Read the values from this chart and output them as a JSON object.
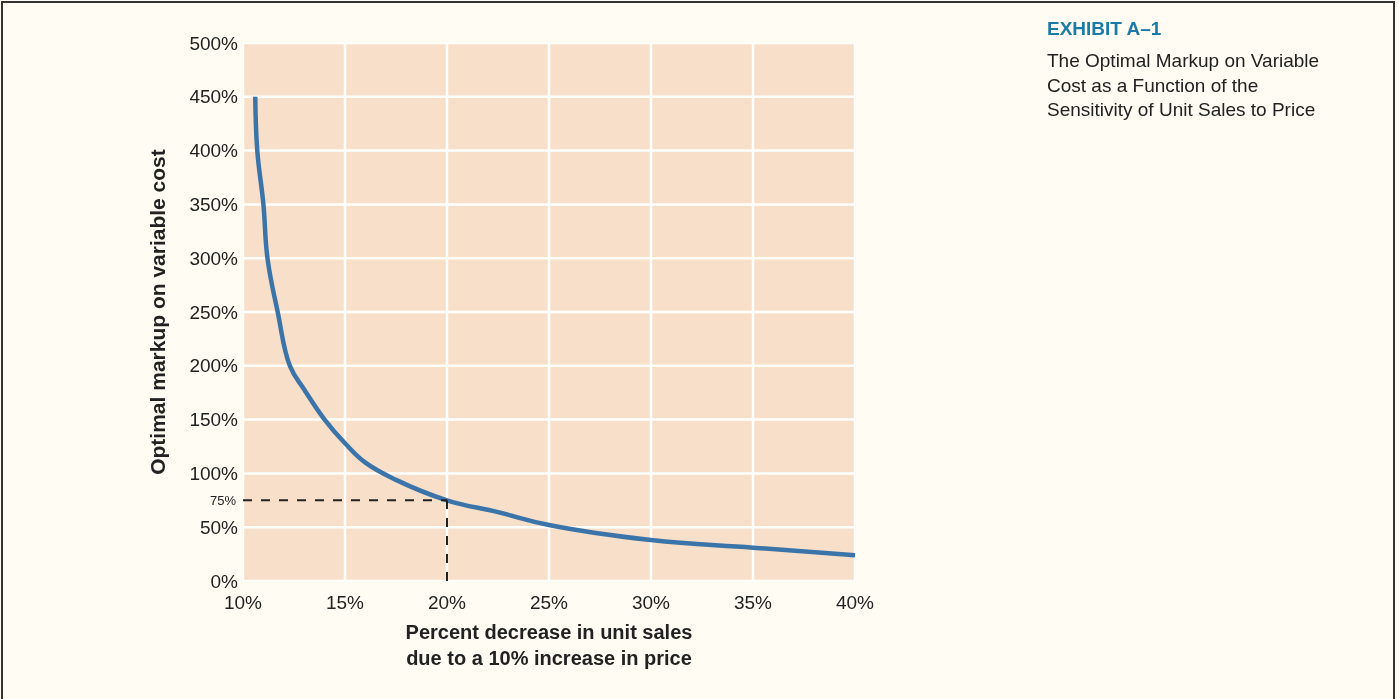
{
  "chart_data": {
    "type": "line",
    "title": "EXHIBIT A–1",
    "subtitle": "The Optimal Markup on Variable\nCost as a Function of the\nSensitivity of Unit Sales to Price",
    "xlabel": "Percent decrease in unit sales\ndue to a 10% increase in price",
    "ylabel": "Optimal markup on variable cost",
    "series": [
      {
        "color": "#3b74a9",
        "x": [
          10.6,
          10.7,
          11.0,
          11.2,
          11.7,
          12.3,
          13,
          14.0,
          15,
          16,
          17.5,
          20,
          22.5,
          25,
          30,
          35,
          40
        ],
        "values": [
          450,
          400,
          350,
          300,
          250,
          200,
          178,
          150,
          128,
          110,
          94,
          75,
          64,
          52,
          38,
          31,
          24
        ]
      }
    ],
    "xlim": [
      10,
      40
    ],
    "xticks": [
      {
        "value": 10,
        "label": "10%"
      },
      {
        "value": 15,
        "label": "15%"
      },
      {
        "value": 20,
        "label": "20%"
      },
      {
        "value": 25,
        "label": "25%"
      },
      {
        "value": 30,
        "label": "30%"
      },
      {
        "value": 35,
        "label": "35%"
      },
      {
        "value": 40,
        "label": "40%"
      }
    ],
    "ylim": [
      0,
      500
    ],
    "yticks": [
      {
        "value": 0,
        "label": "0%"
      },
      {
        "value": 50,
        "label": "50%"
      },
      {
        "value": 100,
        "label": "100%"
      },
      {
        "value": 150,
        "label": "150%"
      },
      {
        "value": 200,
        "label": "200%"
      },
      {
        "value": 250,
        "label": "250%"
      },
      {
        "value": 300,
        "label": "300%"
      },
      {
        "value": 350,
        "label": "350%"
      },
      {
        "value": 400,
        "label": "400%"
      },
      {
        "value": 450,
        "label": "450%"
      },
      {
        "value": 500,
        "label": "500%"
      }
    ],
    "ref_lines": [
      {
        "axis": "x",
        "value": 20,
        "color": "#222222",
        "line_style": "dashed"
      },
      {
        "axis": "y",
        "value": 75,
        "label": "75%",
        "color": "#222222",
        "line_style": "dashed"
      }
    ],
    "grid": true,
    "line_style": "solid",
    "marker": "none"
  }
}
